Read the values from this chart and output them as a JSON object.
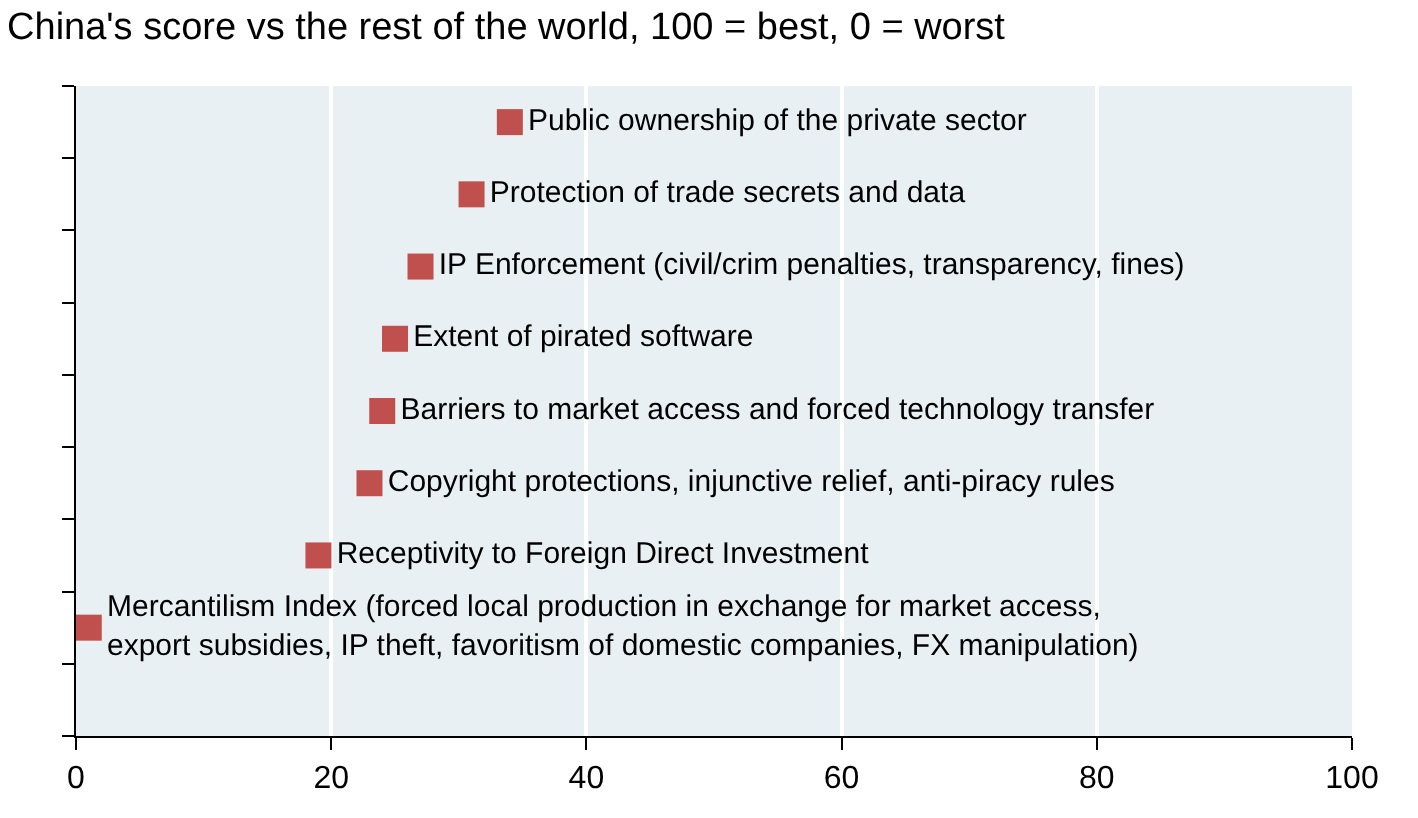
{
  "chart_data": {
    "type": "scatter",
    "orientation": "horizontal",
    "title": "China's score vs the rest of the world, 100 = best, 0 = worst",
    "categories": [
      "Public ownership of the private sector",
      "Protection of trade secrets and data",
      "IP Enforcement (civil/crim penalties, transparency, fines)",
      "Extent of pirated software",
      "Barriers to market access and forced technology transfer",
      "Copyright protections, injunctive relief, anti-piracy rules",
      "Receptivity to Foreign Direct Investment",
      "Mercantilism Index (forced local production in exchange for market access, export subsidies, IP theft, favoritism of domestic companies, FX manipulation)",
      null
    ],
    "values": [
      34,
      31,
      27,
      25,
      24,
      23,
      19,
      1,
      null
    ],
    "color": "#c0504d",
    "marker": "square",
    "xlim": [
      0,
      100
    ],
    "xticks": [
      0,
      20,
      40,
      60,
      80,
      100
    ],
    "grid": "x",
    "tick_labels": "x"
  }
}
